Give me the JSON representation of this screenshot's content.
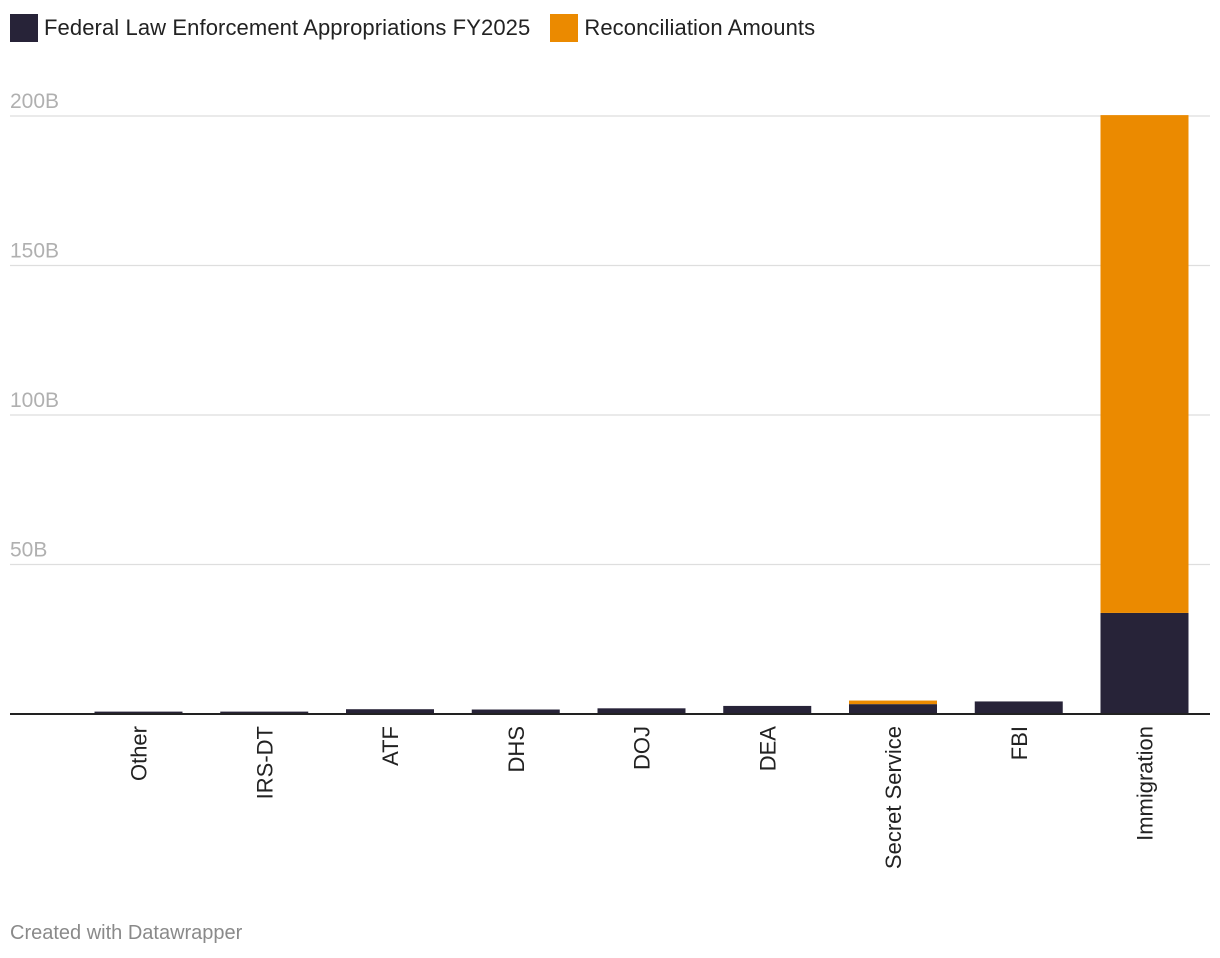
{
  "colors": {
    "federal": "#272338",
    "reconciliation": "#EB8A00",
    "grid": "#dedede",
    "axis": "#222222",
    "tick_text": "#b0b0b0",
    "category_text": "#222222"
  },
  "legend": [
    {
      "label": "Federal Law Enforcement Appropriations FY2025",
      "color_key": "federal"
    },
    {
      "label": "Reconciliation Amounts",
      "color_key": "reconciliation"
    }
  ],
  "footer": "Created with Datawrapper",
  "chart_data": {
    "type": "bar",
    "stacked": true,
    "title": "",
    "xlabel": "",
    "ylabel": "",
    "ylim": [
      0,
      200
    ],
    "y_ticks": [
      {
        "value": 50,
        "label": "50B"
      },
      {
        "value": 100,
        "label": "100B"
      },
      {
        "value": 150,
        "label": "150B"
      },
      {
        "value": 200,
        "label": "200B"
      }
    ],
    "categories": [
      "Other",
      "IRS-DT",
      "ATF",
      "DHS",
      "DOJ",
      "DEA",
      "Secret Service",
      "FBI",
      "Immigration"
    ],
    "series": [
      {
        "name": "Federal Law Enforcement Appropriations FY2025",
        "color_key": "federal",
        "values": [
          0.8,
          0.8,
          1.6,
          1.5,
          1.9,
          2.7,
          3.3,
          4.2,
          33.8
        ]
      },
      {
        "name": "Reconciliation Amounts",
        "color_key": "reconciliation",
        "values": [
          0,
          0,
          0,
          0,
          0,
          0,
          1.2,
          0,
          166.5
        ]
      }
    ]
  }
}
